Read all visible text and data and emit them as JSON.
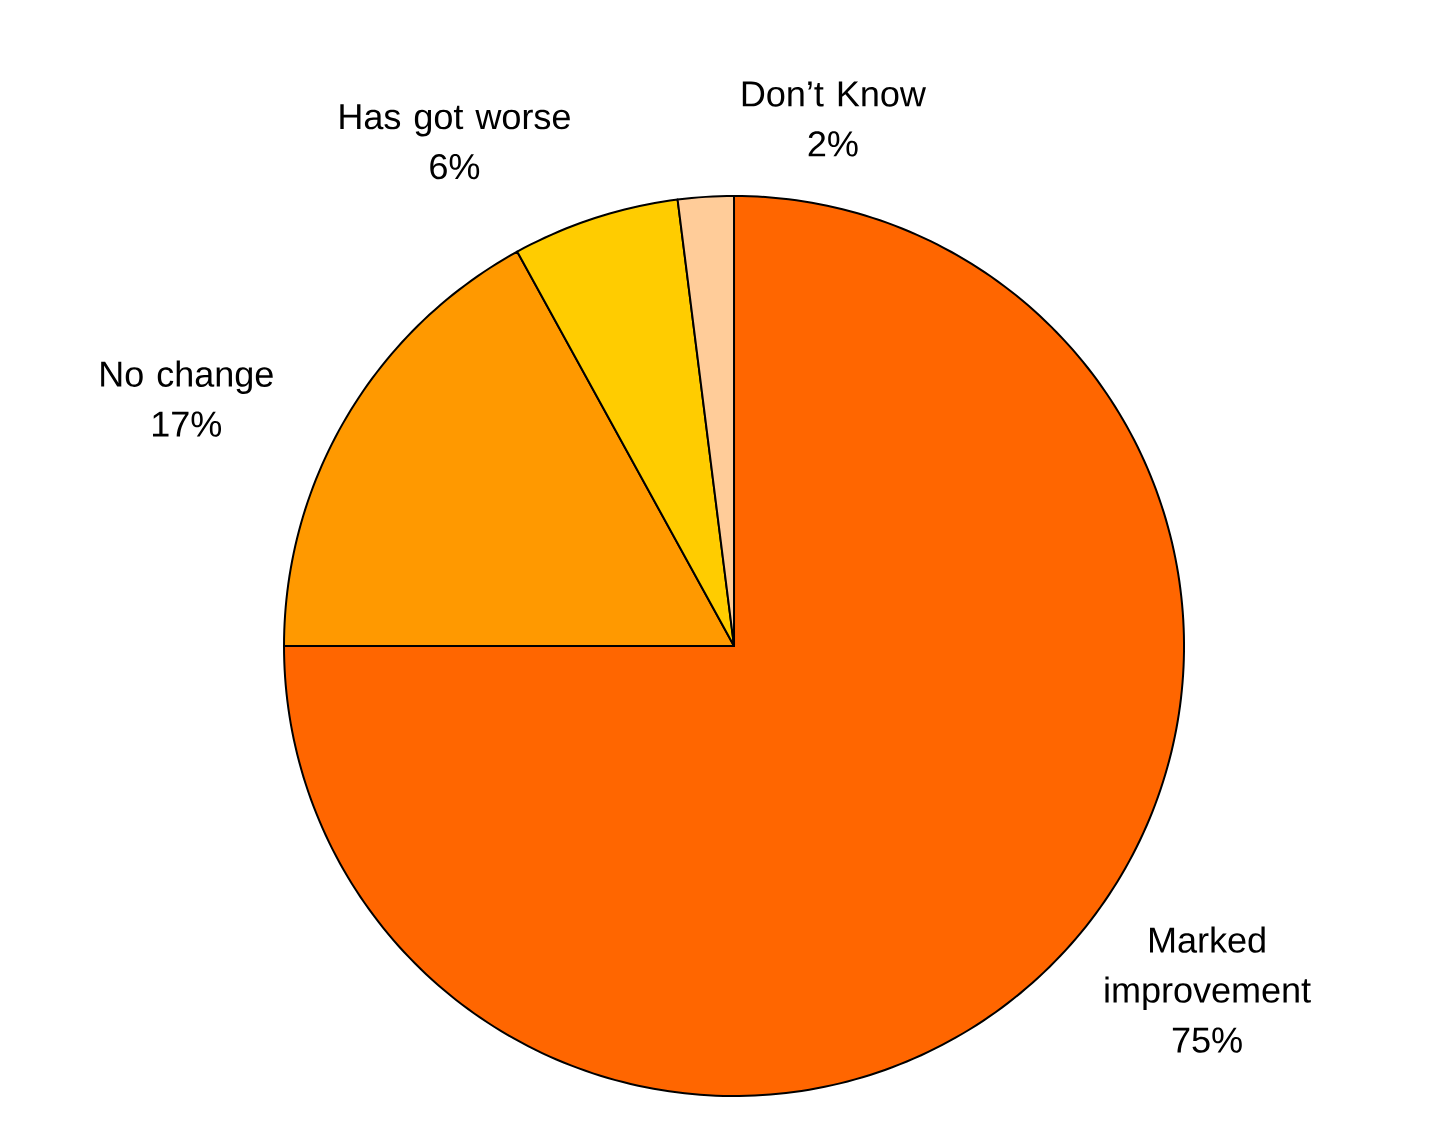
{
  "chart_data": {
    "type": "pie",
    "categories": [
      "Marked improvement",
      "No change",
      "Has got worse",
      "Don’t Know"
    ],
    "values": [
      75,
      17,
      6,
      2
    ],
    "value_labels": [
      "75%",
      "17%",
      "6%",
      "2%"
    ],
    "colors": [
      "#ff6600",
      "#ff9900",
      "#ffcc00",
      "#ffcc99"
    ]
  }
}
